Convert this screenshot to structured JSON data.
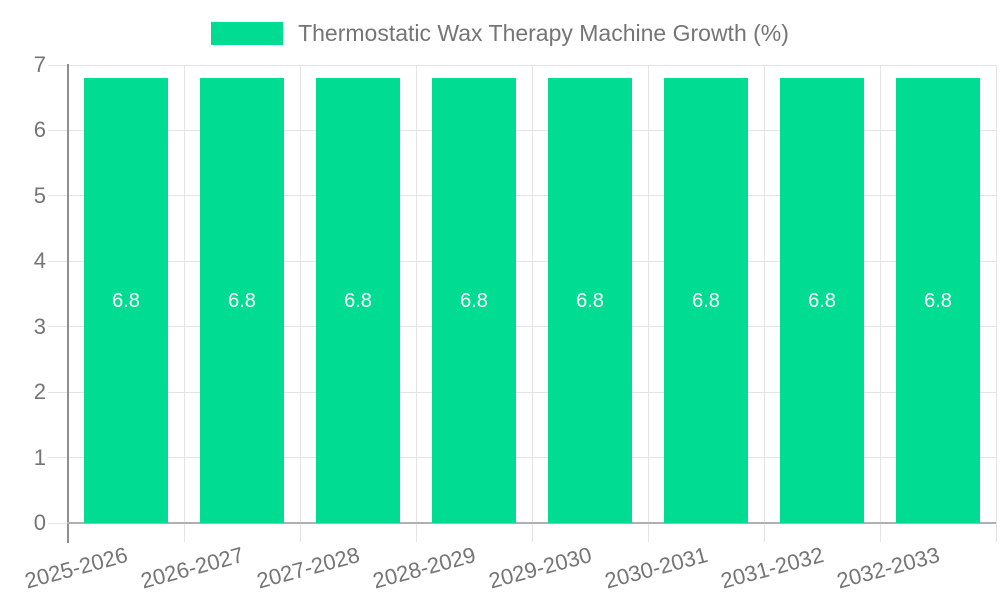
{
  "legend": {
    "label": "Thermostatic Wax Therapy Machine Growth (%)"
  },
  "chart_data": {
    "type": "bar",
    "title": "Thermostatic Wax Therapy Machine Growth (%)",
    "categories": [
      "2025-2026",
      "2026-2027",
      "2027-2028",
      "2028-2029",
      "2029-2030",
      "2030-2031",
      "2031-2032",
      "2032-2033"
    ],
    "values": [
      6.8,
      6.8,
      6.8,
      6.8,
      6.8,
      6.8,
      6.8,
      6.8
    ],
    "data_labels": [
      "6.8",
      "6.8",
      "6.8",
      "6.8",
      "6.8",
      "6.8",
      "6.8",
      "6.8"
    ],
    "xlabel": "",
    "ylabel": "",
    "ylim": [
      0,
      7
    ],
    "yticks": [
      0,
      1,
      2,
      3,
      4,
      5,
      6,
      7
    ],
    "grid": true,
    "legend_position": "top-center",
    "x_label_rotation_deg": -15
  },
  "colors": {
    "background": "#ffffff",
    "bar": "#00dc92",
    "axis_text": "#757575",
    "legend_text": "#757575",
    "gridline": "#e4e4e4",
    "y_axis_line": "#909090",
    "x_axis_line": "#b0b0b0",
    "data_label": "#ffffff"
  }
}
